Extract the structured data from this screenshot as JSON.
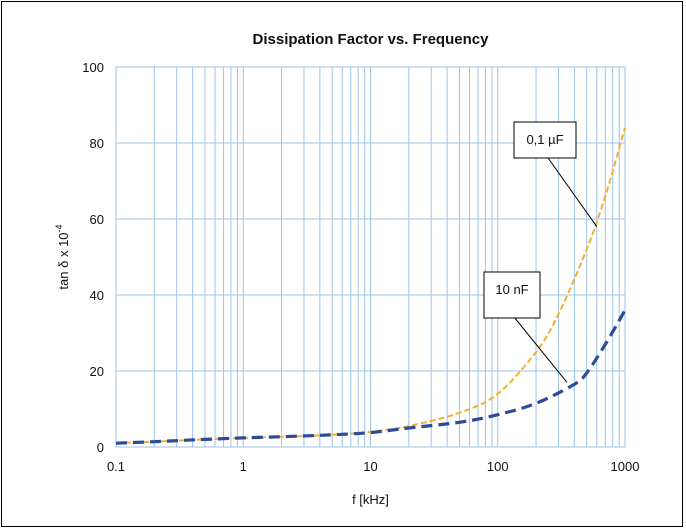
{
  "chart_data": {
    "type": "line",
    "title": "Dissipation Factor vs. Frequency",
    "xlabel": "f [kHz]",
    "ylabel": "tan δ x 10",
    "ylabel_sup": "-4",
    "x_scale": "log",
    "xlim": [
      0.1,
      1000
    ],
    "ylim": [
      0,
      100
    ],
    "x_ticks": [
      "0.1",
      "1",
      "10",
      "100",
      "1000"
    ],
    "y_ticks": [
      "0",
      "20",
      "40",
      "60",
      "80",
      "100"
    ],
    "grid": true,
    "series": [
      {
        "name": "0,1 µF",
        "color": "#f2b134",
        "line_style": "dashed-thin",
        "x": [
          0.1,
          0.2,
          0.5,
          1,
          2,
          5,
          10,
          20,
          50,
          100,
          200,
          300,
          500,
          700,
          1000
        ],
        "y": [
          1.0,
          1.4,
          2.0,
          2.4,
          2.7,
          3.2,
          4.0,
          5.5,
          9.0,
          14.0,
          25.0,
          35.0,
          52.0,
          66.0,
          84.0
        ]
      },
      {
        "name": "10 nF",
        "color": "#2e4b9a",
        "line_style": "dashed-thick",
        "x": [
          0.1,
          0.2,
          0.5,
          1,
          2,
          5,
          10,
          20,
          50,
          100,
          200,
          400,
          500,
          700,
          1000
        ],
        "y": [
          1.0,
          1.4,
          2.0,
          2.4,
          2.7,
          3.2,
          3.8,
          5.0,
          6.5,
          8.5,
          11.5,
          16.5,
          19.5,
          27.0,
          36.0
        ]
      }
    ],
    "annotations": [
      {
        "text": "0,1 µF",
        "series": "0,1 µF",
        "points_to": [
          600,
          58
        ]
      },
      {
        "text": "10 nF",
        "series": "10 nF",
        "points_to": [
          350,
          17
        ]
      }
    ]
  }
}
